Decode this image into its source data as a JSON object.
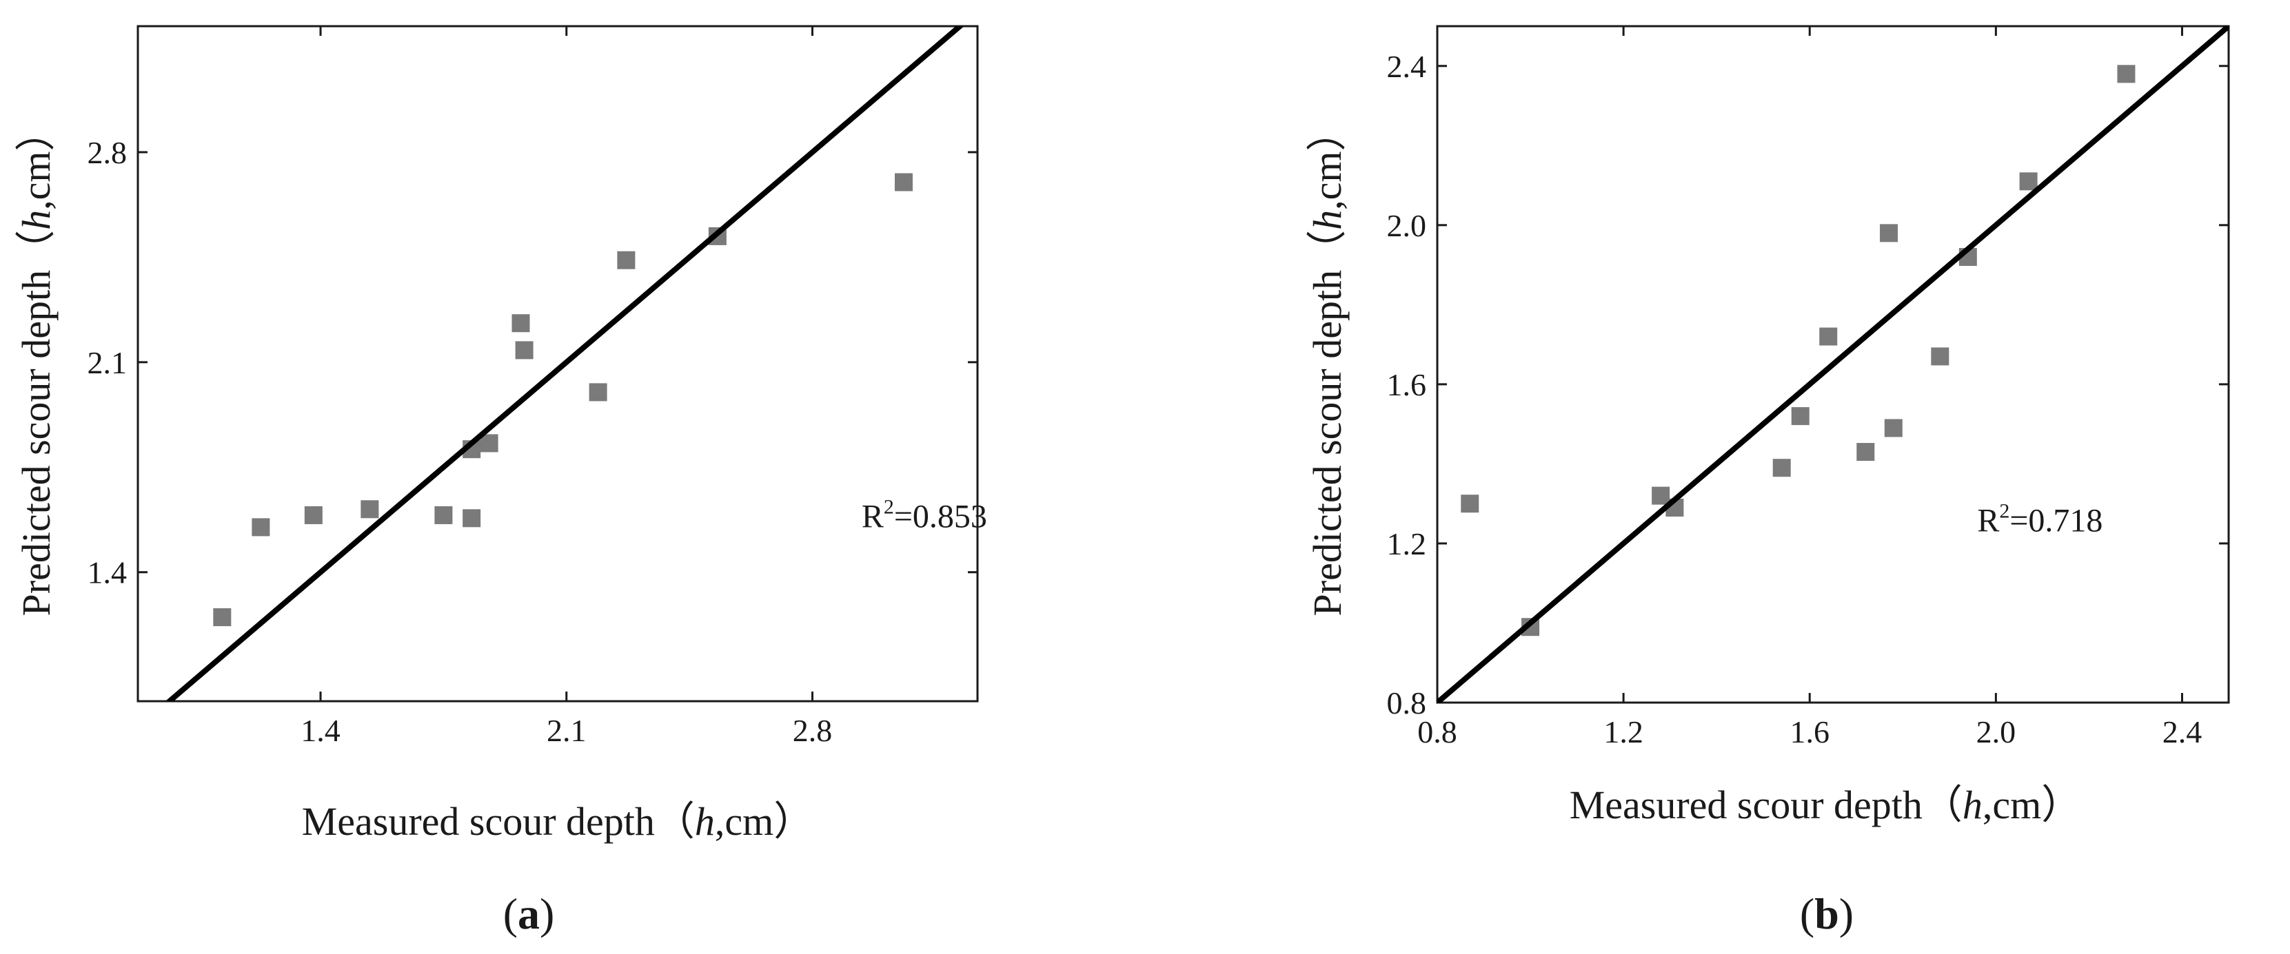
{
  "colors": {
    "axis": "#1a1a1a",
    "marker": "#7a7a7a",
    "fit_line": "#000000"
  },
  "chart_data": [
    {
      "type": "scatter",
      "panel_label": "a",
      "xlabel_pre": "Measured scour depth（",
      "xlabel_italic": "h",
      "xlabel_post": ",cm）",
      "ylabel_pre": "Predicted scour depth（",
      "ylabel_italic": "h",
      "ylabel_post": ",cm）",
      "xlim": [
        0.88,
        3.27
      ],
      "ylim": [
        0.97,
        3.22
      ],
      "xticks": [
        1.4,
        2.1,
        2.8
      ],
      "xtick_labels": [
        "1.4",
        "2.1",
        "2.8"
      ],
      "yticks": [
        1.4,
        2.1,
        2.8
      ],
      "ytick_labels": [
        "1.4",
        "2.1",
        "2.8"
      ],
      "grid": false,
      "reference_line": "y = x",
      "annotation": {
        "text_pre": "R",
        "sup": "2",
        "text_post": "=0.853",
        "x": 2.94,
        "y": 1.55
      },
      "points": [
        {
          "x": 1.12,
          "y": 1.25
        },
        {
          "x": 1.23,
          "y": 1.55
        },
        {
          "x": 1.38,
          "y": 1.59
        },
        {
          "x": 1.54,
          "y": 1.61
        },
        {
          "x": 1.75,
          "y": 1.59
        },
        {
          "x": 1.83,
          "y": 1.58
        },
        {
          "x": 1.83,
          "y": 1.81
        },
        {
          "x": 1.88,
          "y": 1.83
        },
        {
          "x": 1.97,
          "y": 2.23
        },
        {
          "x": 1.98,
          "y": 2.14
        },
        {
          "x": 2.19,
          "y": 2.0
        },
        {
          "x": 2.27,
          "y": 2.44
        },
        {
          "x": 2.53,
          "y": 2.52
        },
        {
          "x": 3.06,
          "y": 2.7
        }
      ]
    },
    {
      "type": "scatter",
      "panel_label": "b",
      "xlabel_pre": "Measured scour depth（",
      "xlabel_italic": "h",
      "xlabel_post": ",cm）",
      "ylabel_pre": "Predicted scour depth（",
      "ylabel_italic": "h",
      "ylabel_post": ",cm）",
      "xlim": [
        0.8,
        2.5
      ],
      "ylim": [
        0.8,
        2.5
      ],
      "xticks": [
        0.8,
        1.2,
        1.6,
        2.0,
        2.4
      ],
      "xtick_labels": [
        "0.8",
        "1.2",
        "1.6",
        "2.0",
        "2.4"
      ],
      "yticks": [
        0.8,
        1.2,
        1.6,
        2.0,
        2.4
      ],
      "ytick_labels": [
        "0.8",
        "1.2",
        "1.6",
        "2.0",
        "2.4"
      ],
      "grid": false,
      "reference_line": "y = x",
      "annotation": {
        "text_pre": "R",
        "sup": "2",
        "text_post": "=0.718",
        "x": 1.96,
        "y": 1.23
      },
      "points": [
        {
          "x": 0.87,
          "y": 1.3
        },
        {
          "x": 1.0,
          "y": 0.99
        },
        {
          "x": 1.28,
          "y": 1.32
        },
        {
          "x": 1.31,
          "y": 1.29
        },
        {
          "x": 1.54,
          "y": 1.39
        },
        {
          "x": 1.58,
          "y": 1.52
        },
        {
          "x": 1.64,
          "y": 1.72
        },
        {
          "x": 1.72,
          "y": 1.43
        },
        {
          "x": 1.77,
          "y": 1.98
        },
        {
          "x": 1.78,
          "y": 1.49
        },
        {
          "x": 1.88,
          "y": 1.67
        },
        {
          "x": 1.94,
          "y": 1.92
        },
        {
          "x": 2.07,
          "y": 2.11
        },
        {
          "x": 2.28,
          "y": 2.38
        }
      ]
    }
  ]
}
